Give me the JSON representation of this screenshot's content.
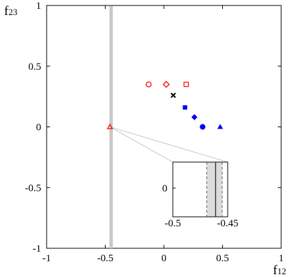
{
  "chart_data": {
    "type": "scatter",
    "xlabel": {
      "main": "f",
      "sub": "12"
    },
    "ylabel": {
      "main": "f",
      "sub": "23"
    },
    "xlim": [
      -1,
      1
    ],
    "ylim": [
      -1,
      1
    ],
    "x_ticks": [
      {
        "value": -1,
        "label": "-1"
      },
      {
        "value": -0.5,
        "label": "-0.5"
      },
      {
        "value": 0,
        "label": "0"
      },
      {
        "value": 0.5,
        "label": "0.5"
      },
      {
        "value": 1,
        "label": "1"
      }
    ],
    "y_ticks": [
      {
        "value": -1,
        "label": "-1"
      },
      {
        "value": -0.5,
        "label": "-0.5"
      },
      {
        "value": 0,
        "label": "0"
      },
      {
        "value": 0.5,
        "label": "0.5"
      },
      {
        "value": 1,
        "label": "1"
      }
    ],
    "grid": false,
    "vertical_band": {
      "x": -0.45,
      "color": "#c8c8c8"
    },
    "points": [
      {
        "x": -0.13,
        "y": 0.35,
        "marker": "circle-open",
        "color": "#ff0000"
      },
      {
        "x": 0.02,
        "y": 0.35,
        "marker": "diamond-open",
        "color": "#ff0000"
      },
      {
        "x": 0.19,
        "y": 0.35,
        "marker": "square-open",
        "color": "#ff0000"
      },
      {
        "x": 0.08,
        "y": 0.26,
        "marker": "x",
        "color": "#000000"
      },
      {
        "x": 0.18,
        "y": 0.16,
        "marker": "square-filled",
        "color": "#0000ff"
      },
      {
        "x": 0.26,
        "y": 0.08,
        "marker": "diamond-filled",
        "color": "#0000ff"
      },
      {
        "x": 0.33,
        "y": 0.0,
        "marker": "circle-filled",
        "color": "#0000ff"
      },
      {
        "x": 0.48,
        "y": 0.0,
        "marker": "triangle-filled",
        "color": "#0000ff"
      },
      {
        "x": -0.46,
        "y": 0.0,
        "marker": "triangle-open",
        "color": "#ff0000"
      }
    ],
    "inset": {
      "xlim": [
        -0.5,
        -0.45
      ],
      "x_tick_labels": [
        {
          "value": -0.5,
          "label": "-0.5"
        },
        {
          "value": -0.45,
          "label": "-0.45"
        }
      ],
      "y_tick_labels": [
        {
          "value": 0,
          "label": "0"
        }
      ],
      "band": {
        "x_min": -0.469,
        "x_max": -0.455
      },
      "band_dashes": [
        -0.469,
        -0.455
      ],
      "line_x": -0.461,
      "band_color": "#dcdcdc"
    }
  }
}
